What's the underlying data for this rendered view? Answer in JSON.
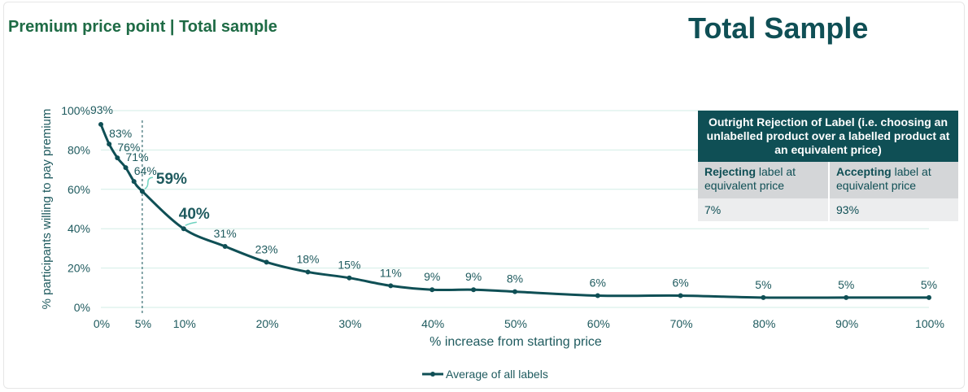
{
  "header": {
    "subtitle": "Premium price point | Total sample",
    "title": "Total Sample"
  },
  "table": {
    "heading": "Outright Rejection of Label (i.e. choosing an unlabelled product over a labelled product at an equivalent price)",
    "col1_bold": "Rejecting",
    "col1_rest": " label at equivalent price",
    "col2_bold": "Accepting",
    "col2_rest": " label at equivalent price",
    "col1_value": "7%",
    "col2_value": "93%"
  },
  "colors": {
    "line": "#0f4f55",
    "grid": "#d2eee6",
    "text": "#1e5a5e"
  },
  "chart_data": {
    "type": "line",
    "title": "",
    "xlabel": "% increase from starting price",
    "ylabel": "% participants willing to pay premium",
    "xlim": [
      0,
      100
    ],
    "ylim": [
      0,
      100
    ],
    "x_ticks": [
      0,
      5,
      10,
      20,
      30,
      40,
      50,
      60,
      70,
      80,
      90,
      100
    ],
    "x_tick_labels": [
      "0%",
      "5%",
      "10%",
      "20%",
      "30%",
      "40%",
      "50%",
      "60%",
      "70%",
      "80%",
      "90%",
      "100%"
    ],
    "y_ticks": [
      0,
      20,
      40,
      60,
      80,
      100
    ],
    "y_tick_labels": [
      "0%",
      "20%",
      "40%",
      "60%",
      "80%",
      "100%"
    ],
    "grid": true,
    "reference_line_x": 5,
    "legend_position": "bottom",
    "series": [
      {
        "name": "Average of all labels",
        "x": [
          0,
          1,
          2,
          3,
          4,
          5,
          10,
          15,
          20,
          25,
          30,
          35,
          40,
          45,
          50,
          60,
          70,
          80,
          90,
          100
        ],
        "values": [
          93,
          83,
          76,
          71,
          64,
          59,
          40,
          31,
          23,
          18,
          15,
          11,
          9,
          9,
          8,
          6,
          6,
          5,
          5,
          5
        ],
        "labels": [
          "93%",
          "83%",
          "76%",
          "71%",
          "64%",
          "59%",
          "40%",
          "31%",
          "23%",
          "18%",
          "15%",
          "11%",
          "9%",
          "9%",
          "8%",
          "6%",
          "6%",
          "5%",
          "5%",
          "5%"
        ],
        "highlighted_labels": [
          "59%",
          "40%"
        ]
      }
    ]
  }
}
